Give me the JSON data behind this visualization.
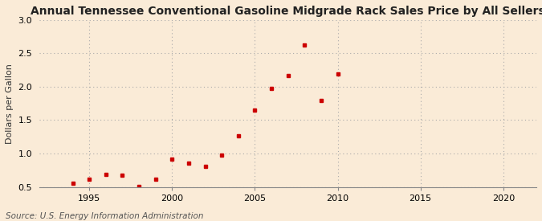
{
  "title": "Annual Tennessee Conventional Gasoline Midgrade Rack Sales Price by All Sellers",
  "ylabel": "Dollars per Gallon",
  "source": "Source: U.S. Energy Information Administration",
  "background_color": "#faebd7",
  "marker_color": "#cc0000",
  "xlim": [
    1992,
    2022
  ],
  "ylim": [
    0.5,
    3.0
  ],
  "xticks": [
    1995,
    2000,
    2005,
    2010,
    2015,
    2020
  ],
  "yticks": [
    0.5,
    1.0,
    1.5,
    2.0,
    2.5,
    3.0
  ],
  "years": [
    1994,
    1995,
    1996,
    1997,
    1998,
    1999,
    2000,
    2001,
    2002,
    2003,
    2004,
    2005,
    2006,
    2007,
    2008,
    2009,
    2010
  ],
  "values": [
    0.55,
    0.61,
    0.69,
    0.67,
    0.51,
    0.61,
    0.92,
    0.85,
    0.81,
    0.97,
    1.26,
    1.65,
    1.97,
    2.17,
    2.62,
    1.8,
    2.19
  ],
  "title_fontsize": 10,
  "label_fontsize": 8,
  "tick_fontsize": 8,
  "source_fontsize": 7.5
}
